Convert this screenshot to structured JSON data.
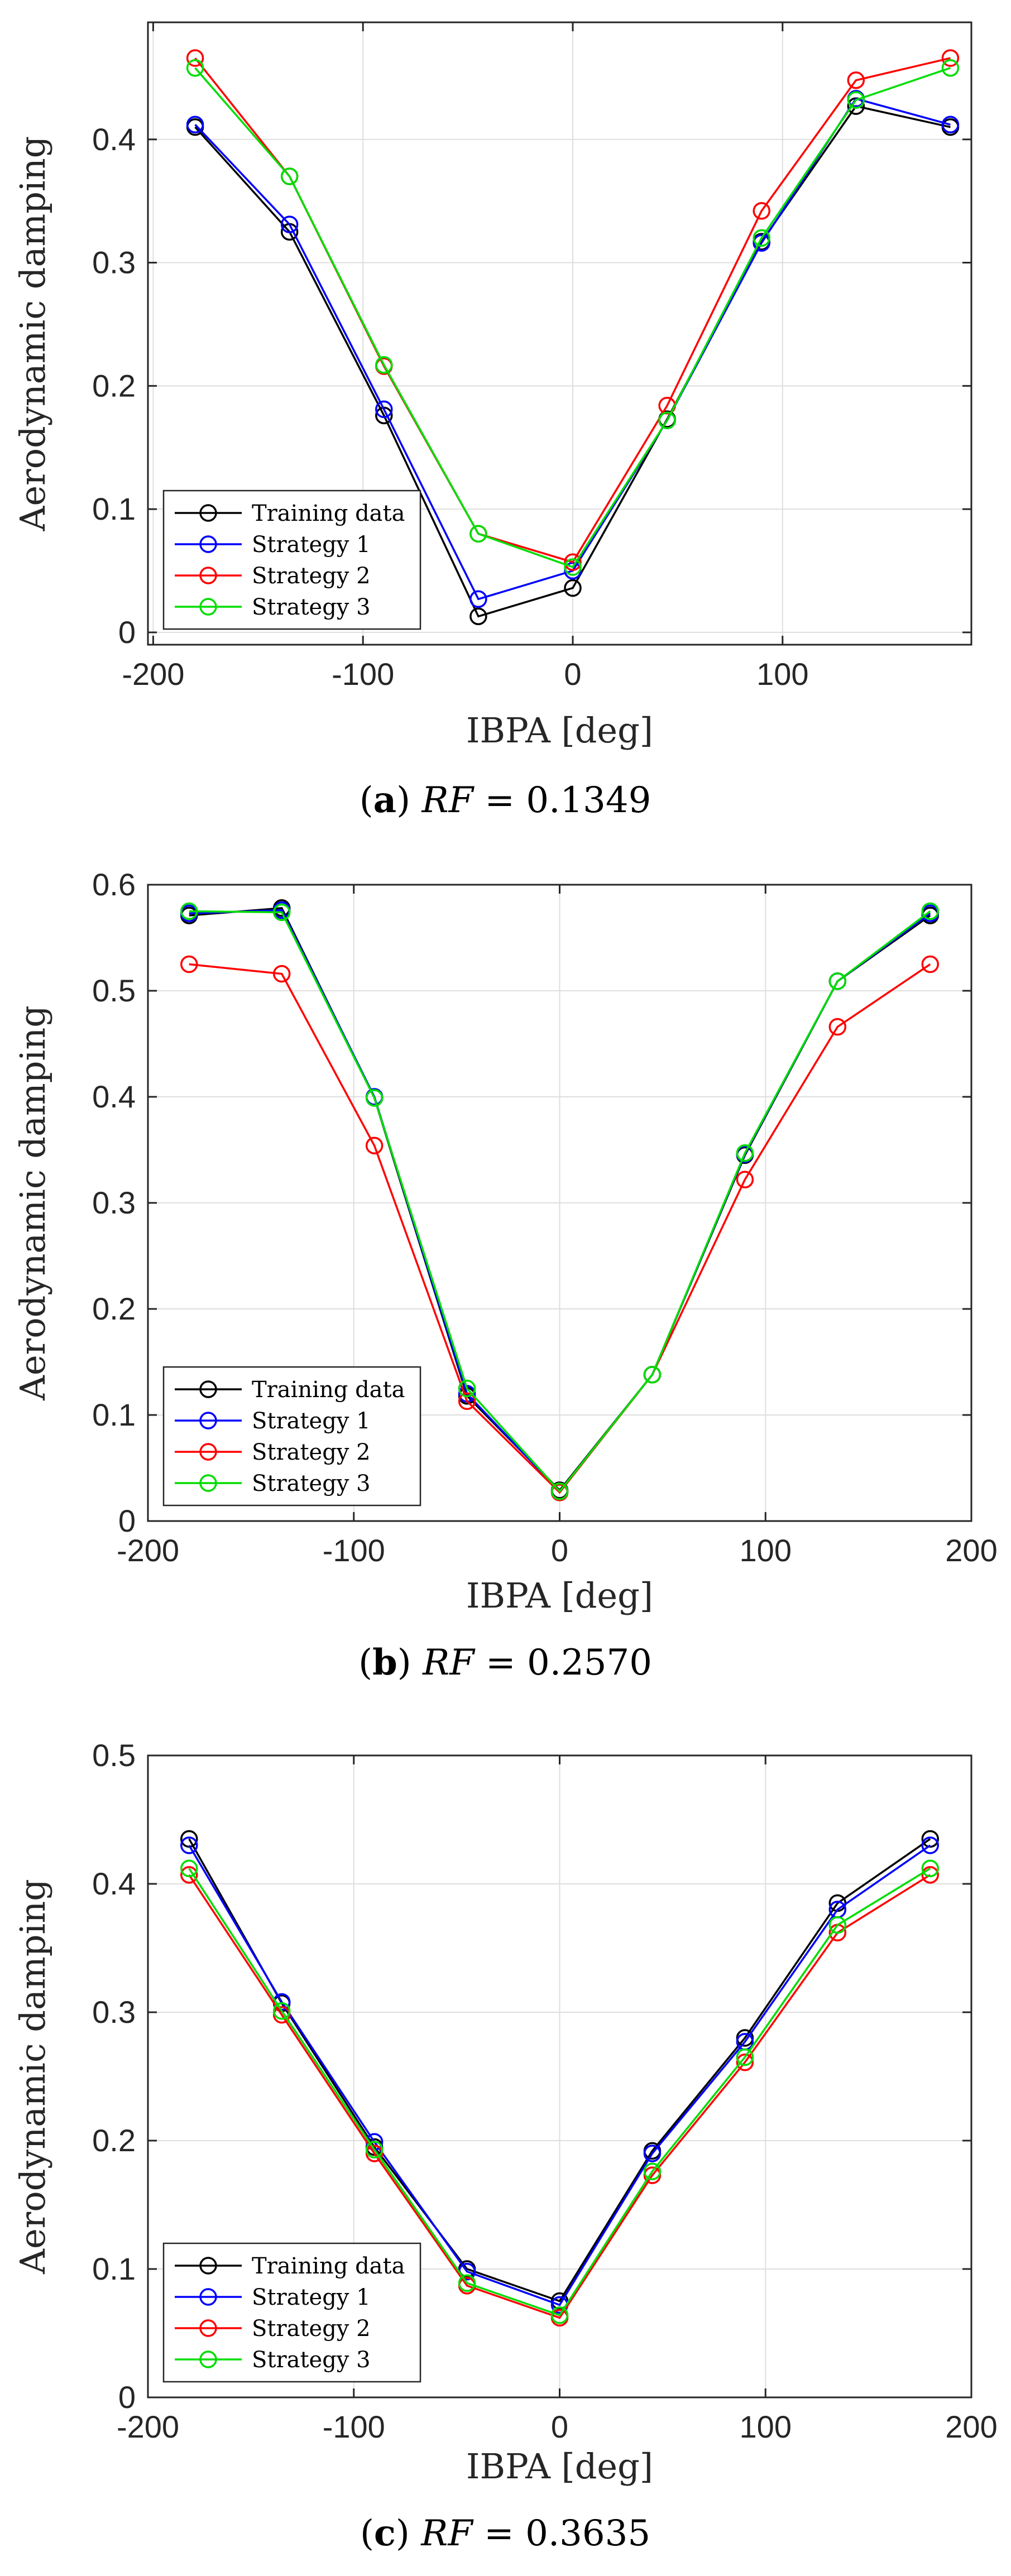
{
  "chart_data": [
    {
      "type": "line",
      "caption": {
        "letter": "a",
        "var": "RF",
        "eq": " = ",
        "value": "0.1349"
      },
      "xlabel": "IBPA [deg]",
      "ylabel": "Aerodynamic damping",
      "xlim": [
        -202.5,
        190
      ],
      "ylim": [
        -0.01,
        0.495
      ],
      "xticks": [
        -200,
        -100,
        0,
        100
      ],
      "xtick_labels": [
        "-200",
        "-100",
        "0",
        "100"
      ],
      "yticks": [
        0,
        0.1,
        0.2,
        0.3,
        0.4
      ],
      "ytick_labels": [
        "0",
        "0.1",
        "0.2",
        "0.3",
        "0.4"
      ],
      "grid": true,
      "legend_position": "bottom-left",
      "x": [
        -180,
        -135,
        -90,
        -45,
        0,
        45,
        90,
        135,
        180
      ],
      "series": [
        {
          "name": "Training data",
          "color": "#000000",
          "values": [
            0.41,
            0.325,
            0.176,
            0.013,
            0.036,
            0.173,
            0.317,
            0.427,
            0.41
          ]
        },
        {
          "name": "Strategy 1",
          "color": "#0000ff",
          "values": [
            0.412,
            0.331,
            0.181,
            0.027,
            0.05,
            0.172,
            0.316,
            0.433,
            0.412
          ]
        },
        {
          "name": "Strategy 2",
          "color": "#ff0000",
          "values": [
            0.466,
            0.37,
            0.216,
            0.08,
            0.057,
            0.184,
            0.342,
            0.448,
            0.466
          ]
        },
        {
          "name": "Strategy 3",
          "color": "#00dd00",
          "values": [
            0.458,
            0.37,
            0.217,
            0.08,
            0.053,
            0.172,
            0.32,
            0.432,
            0.458
          ]
        }
      ]
    },
    {
      "type": "line",
      "caption": {
        "letter": "b",
        "var": "RF",
        "eq": " = ",
        "value": "0.2570"
      },
      "xlabel": "IBPA [deg]",
      "ylabel": "Aerodynamic damping",
      "xlim": [
        -200,
        200
      ],
      "ylim": [
        0,
        0.6
      ],
      "xticks": [
        -200,
        -100,
        0,
        100,
        200
      ],
      "xtick_labels": [
        "-200",
        "-100",
        "0",
        "100",
        "200"
      ],
      "yticks": [
        0,
        0.1,
        0.2,
        0.3,
        0.4,
        0.5,
        0.6
      ],
      "ytick_labels": [
        "0",
        "0.1",
        "0.2",
        "0.3",
        "0.4",
        "0.5",
        "0.6"
      ],
      "grid": true,
      "legend_position": "bottom-left",
      "x": [
        -180,
        -135,
        -90,
        -45,
        0,
        45,
        90,
        135,
        180
      ],
      "series": [
        {
          "name": "Training data",
          "color": "#000000",
          "values": [
            0.571,
            0.578,
            0.399,
            0.118,
            0.029,
            0.138,
            0.345,
            0.509,
            0.571
          ]
        },
        {
          "name": "Strategy 1",
          "color": "#0000ff",
          "values": [
            0.573,
            0.576,
            0.4,
            0.12,
            0.028,
            0.138,
            0.346,
            0.509,
            0.573
          ]
        },
        {
          "name": "Strategy 2",
          "color": "#ff0000",
          "values": [
            0.525,
            0.516,
            0.354,
            0.113,
            0.027,
            0.138,
            0.322,
            0.466,
            0.525
          ]
        },
        {
          "name": "Strategy 3",
          "color": "#00dd00",
          "values": [
            0.575,
            0.574,
            0.399,
            0.125,
            0.028,
            0.138,
            0.347,
            0.509,
            0.575
          ]
        }
      ]
    },
    {
      "type": "line",
      "caption": {
        "letter": "c",
        "var": "RF",
        "eq": " = ",
        "value": "0.3635"
      },
      "xlabel": "IBPA [deg]",
      "ylabel": "Aerodynamic damping",
      "xlim": [
        -200,
        200
      ],
      "ylim": [
        0,
        0.5
      ],
      "xticks": [
        -200,
        -100,
        0,
        100,
        200
      ],
      "xtick_labels": [
        "-200",
        "-100",
        "0",
        "100",
        "200"
      ],
      "yticks": [
        0,
        0.1,
        0.2,
        0.3,
        0.4,
        0.5
      ],
      "ytick_labels": [
        "0",
        "0.1",
        "0.2",
        "0.3",
        "0.4",
        "0.5"
      ],
      "grid": true,
      "legend_position": "bottom-left",
      "x": [
        -180,
        -135,
        -90,
        -45,
        0,
        45,
        90,
        135,
        180
      ],
      "series": [
        {
          "name": "Training data",
          "color": "#000000",
          "values": [
            0.435,
            0.307,
            0.195,
            0.1,
            0.075,
            0.192,
            0.28,
            0.385,
            0.435
          ]
        },
        {
          "name": "Strategy 1",
          "color": "#0000ff",
          "values": [
            0.43,
            0.308,
            0.199,
            0.098,
            0.072,
            0.19,
            0.277,
            0.38,
            0.43
          ]
        },
        {
          "name": "Strategy 2",
          "color": "#ff0000",
          "values": [
            0.407,
            0.298,
            0.19,
            0.087,
            0.062,
            0.173,
            0.261,
            0.362,
            0.407
          ]
        },
        {
          "name": "Strategy 3",
          "color": "#00dd00",
          "values": [
            0.412,
            0.301,
            0.193,
            0.089,
            0.064,
            0.176,
            0.265,
            0.368,
            0.412
          ]
        }
      ]
    }
  ]
}
